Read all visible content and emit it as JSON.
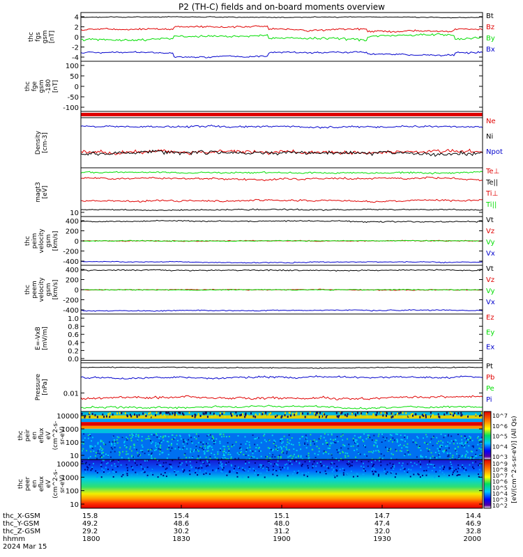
{
  "title": "P2 (TH-C) fields and on-board moments overview",
  "colors": {
    "black": "#000000",
    "red": "#e00000",
    "green": "#00dd00",
    "blue": "#0000cc"
  },
  "chart_data": [
    {
      "type": "line",
      "ylabel": [
        "thc",
        "fgs",
        "gsm",
        "[nT]"
      ],
      "yticks": [
        "4",
        "2",
        "0",
        "-2",
        "-4"
      ],
      "legend": [
        "Bt",
        "Bz",
        "By",
        "Bx"
      ],
      "legend_colors": [
        "black",
        "red",
        "green",
        "blue"
      ],
      "ylim": [
        -4,
        5
      ]
    },
    {
      "type": "line",
      "ylabel": [
        "thc",
        "fge",
        "gsm",
        "-180",
        "[nT]"
      ],
      "yticks": [
        "100",
        "50",
        "0",
        "-50",
        "-100"
      ],
      "ylim": [
        -130,
        100
      ]
    },
    {
      "type": "bar",
      "ylabel": []
    },
    {
      "type": "line",
      "ylabel": [
        "Density",
        "[cm-3]"
      ],
      "legend": [
        "Ne",
        "Ni",
        "Npot"
      ],
      "legend_colors": [
        "red",
        "black",
        "blue"
      ]
    },
    {
      "type": "line",
      "ylabel": [
        "magt3",
        "[eV]"
      ],
      "yticks": [
        "10"
      ],
      "legend": [
        "Te⊥",
        "Te||",
        "Ti⊥",
        "Ti||"
      ],
      "legend_colors": [
        "red",
        "black",
        "red",
        "green"
      ]
    },
    {
      "type": "line",
      "ylabel": [
        "thc",
        "peim",
        "velocity",
        "gsm",
        "[km/s]"
      ],
      "yticks": [
        "400",
        "200",
        "0",
        "-200",
        "-400"
      ],
      "legend": [
        "Vt",
        "Vz",
        "Vy",
        "Vx"
      ],
      "legend_colors": [
        "black",
        "red",
        "green",
        "blue"
      ],
      "ylim": [
        -450,
        430
      ]
    },
    {
      "type": "line",
      "ylabel": [
        "thc",
        "peem",
        "velocity",
        "gsm",
        "[km/s]"
      ],
      "yticks": [
        "400",
        "200",
        "0",
        "-200",
        "-400"
      ],
      "legend": [
        "Vt",
        "Vz",
        "Vy",
        "Vx"
      ],
      "legend_colors": [
        "black",
        "red",
        "green",
        "blue"
      ],
      "ylim": [
        -450,
        430
      ]
    },
    {
      "type": "line",
      "ylabel": [
        "E=-VxB",
        "[mV/m]"
      ],
      "yticks": [
        "1.0",
        "0.8",
        "0.6",
        "0.4",
        "0.2",
        "0.0"
      ],
      "legend": [
        "Ez",
        "Ey",
        "Ex"
      ],
      "legend_colors": [
        "red",
        "green",
        "blue"
      ],
      "ylim": [
        -0.05,
        1.0
      ]
    },
    {
      "type": "line",
      "ylabel": [
        "Pressure",
        "[nPa]"
      ],
      "yticks": [
        "0.01"
      ],
      "legend": [
        "Pt",
        "Pb",
        "Pe",
        "Pi"
      ],
      "legend_colors": [
        "black",
        "red",
        "green",
        "blue"
      ]
    },
    {
      "type": "heatmap",
      "ylabel": [
        "thc",
        "peir",
        "en",
        "eflux",
        "eV",
        "(cm^2-s-",
        "sr-eV)"
      ],
      "yticks": [
        "10000",
        "1000",
        "100",
        "10"
      ]
    },
    {
      "type": "heatmap",
      "ylabel": [
        "thc",
        "peer",
        "en",
        "eflux",
        "eV",
        "(cm^2-s-",
        "sr-eV)"
      ],
      "yticks": [
        "10000",
        "1000",
        "100",
        "10"
      ]
    }
  ],
  "colorbars": [
    {
      "ticks": [
        "10^7",
        "10^6",
        "10^5",
        "10^4",
        "10^3"
      ]
    },
    {
      "ticks": [
        "10^9",
        "10^8",
        "10^7",
        "10^6",
        "10^5",
        "10^4",
        "10^3",
        "10^2"
      ]
    }
  ],
  "colorbar_label": "[eV/(cm^2-s-sr-eV)] (All Qs)",
  "xaxis": {
    "row_labels": [
      "thc_X-GSM",
      "thc_Y-GSM",
      "thc_Z-GSM",
      "hhmm"
    ],
    "columns": [
      {
        "x": [
          "15.8",
          "49.2",
          "29.2",
          "1800"
        ]
      },
      {
        "x": [
          "15.4",
          "48.6",
          "30.2",
          "1830"
        ]
      },
      {
        "x": [
          "15.1",
          "48.0",
          "31.2",
          "1900"
        ]
      },
      {
        "x": [
          "14.7",
          "47.4",
          "32.0",
          "1930"
        ]
      },
      {
        "x": [
          "14.4",
          "46.9",
          "32.8",
          "2000"
        ]
      }
    ],
    "date": "2024 Mar 15"
  }
}
